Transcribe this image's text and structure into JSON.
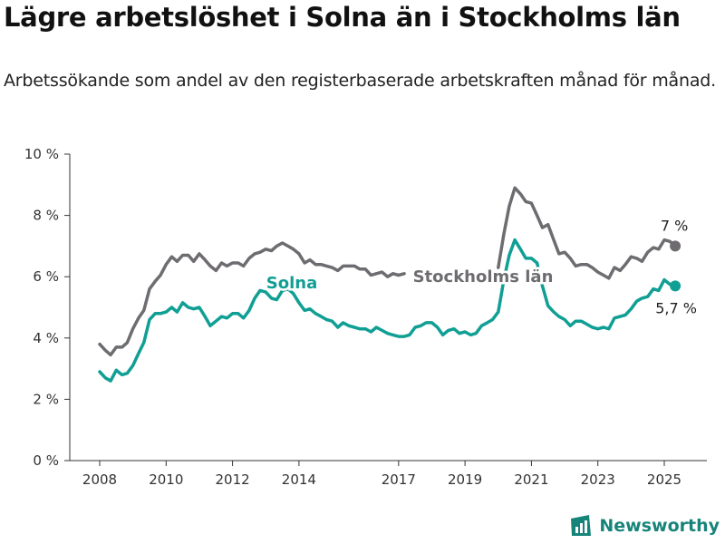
{
  "title": "Lägre arbetslöshet i Solna än i Stockholms län",
  "subtitle": "Arbetssökande som andel av den registerbaserade arbetskraften månad för månad.",
  "brand": {
    "name": "Newsworthy",
    "icon": "newsworthy-logo-icon"
  },
  "colors": {
    "solna": "#109f94",
    "stockholm": "#6e6c70",
    "axis": "#333333",
    "text": "#222222"
  },
  "chart_data": {
    "type": "line",
    "title": "Lägre arbetslöshet i Solna än i Stockholms län",
    "ylabel": "",
    "xlabel": "",
    "ylim": [
      0,
      10
    ],
    "xlim": [
      2007.2,
      2026.2
    ],
    "grid": false,
    "y_ticks": [
      {
        "value": 0,
        "label": "0 %"
      },
      {
        "value": 2,
        "label": "2 %"
      },
      {
        "value": 4,
        "label": "4 %"
      },
      {
        "value": 6,
        "label": "6 %"
      },
      {
        "value": 8,
        "label": "8 %"
      },
      {
        "value": 10,
        "label": "10 %"
      }
    ],
    "x_ticks": [
      "2008",
      "2010",
      "2012",
      "2014",
      "2017",
      "2019",
      "2021",
      "2023",
      "2025"
    ],
    "series": [
      {
        "name": "Stockholms län",
        "color": "#6e6c70",
        "end_label": "7 %",
        "points": [
          [
            2008.0,
            3.8
          ],
          [
            2008.17,
            3.6
          ],
          [
            2008.33,
            3.45
          ],
          [
            2008.5,
            3.7
          ],
          [
            2008.67,
            3.7
          ],
          [
            2008.83,
            3.85
          ],
          [
            2009.0,
            4.3
          ],
          [
            2009.17,
            4.65
          ],
          [
            2009.33,
            4.9
          ],
          [
            2009.5,
            5.6
          ],
          [
            2009.67,
            5.85
          ],
          [
            2009.83,
            6.05
          ],
          [
            2010.0,
            6.4
          ],
          [
            2010.17,
            6.65
          ],
          [
            2010.33,
            6.5
          ],
          [
            2010.5,
            6.7
          ],
          [
            2010.67,
            6.7
          ],
          [
            2010.83,
            6.5
          ],
          [
            2011.0,
            6.75
          ],
          [
            2011.17,
            6.55
          ],
          [
            2011.33,
            6.35
          ],
          [
            2011.5,
            6.2
          ],
          [
            2011.67,
            6.45
          ],
          [
            2011.83,
            6.35
          ],
          [
            2012.0,
            6.45
          ],
          [
            2012.17,
            6.45
          ],
          [
            2012.33,
            6.35
          ],
          [
            2012.5,
            6.6
          ],
          [
            2012.67,
            6.75
          ],
          [
            2012.83,
            6.8
          ],
          [
            2013.0,
            6.9
          ],
          [
            2013.17,
            6.85
          ],
          [
            2013.33,
            7.0
          ],
          [
            2013.5,
            7.1
          ],
          [
            2013.67,
            7.0
          ],
          [
            2013.83,
            6.9
          ],
          [
            2014.0,
            6.75
          ],
          [
            2014.17,
            6.45
          ],
          [
            2014.33,
            6.55
          ],
          [
            2014.5,
            6.4
          ],
          [
            2014.67,
            6.4
          ],
          [
            2014.83,
            6.35
          ],
          [
            2015.0,
            6.3
          ],
          [
            2015.17,
            6.2
          ],
          [
            2015.33,
            6.35
          ],
          [
            2015.5,
            6.35
          ],
          [
            2015.67,
            6.35
          ],
          [
            2015.83,
            6.25
          ],
          [
            2016.0,
            6.25
          ],
          [
            2016.17,
            6.05
          ],
          [
            2016.33,
            6.1
          ],
          [
            2016.5,
            6.15
          ],
          [
            2016.67,
            6.0
          ],
          [
            2016.83,
            6.1
          ],
          [
            2017.0,
            6.05
          ],
          [
            2017.17,
            6.1
          ]
        ],
        "points_after_gap": [
          [
            2019.25,
            5.85
          ],
          [
            2019.35,
            5.9
          ]
        ],
        "points_end": [
          [
            2020.0,
            6.3
          ],
          [
            2020.17,
            7.4
          ],
          [
            2020.33,
            8.3
          ],
          [
            2020.5,
            8.9
          ],
          [
            2020.67,
            8.7
          ],
          [
            2020.83,
            8.45
          ],
          [
            2021.0,
            8.4
          ],
          [
            2021.17,
            8.0
          ],
          [
            2021.33,
            7.6
          ],
          [
            2021.5,
            7.7
          ],
          [
            2021.67,
            7.2
          ],
          [
            2021.83,
            6.75
          ],
          [
            2022.0,
            6.8
          ],
          [
            2022.17,
            6.6
          ],
          [
            2022.33,
            6.35
          ],
          [
            2022.5,
            6.4
          ],
          [
            2022.67,
            6.4
          ],
          [
            2022.83,
            6.3
          ],
          [
            2023.0,
            6.15
          ],
          [
            2023.17,
            6.05
          ],
          [
            2023.33,
            5.95
          ],
          [
            2023.5,
            6.3
          ],
          [
            2023.67,
            6.2
          ],
          [
            2023.83,
            6.4
          ],
          [
            2024.0,
            6.65
          ],
          [
            2024.17,
            6.6
          ],
          [
            2024.33,
            6.5
          ],
          [
            2024.5,
            6.8
          ],
          [
            2024.67,
            6.95
          ],
          [
            2024.83,
            6.9
          ],
          [
            2025.0,
            7.2
          ],
          [
            2025.17,
            7.15
          ],
          [
            2025.33,
            7.0
          ]
        ]
      },
      {
        "name": "Solna",
        "color": "#109f94",
        "end_label": "5,7 %",
        "points": [
          [
            2008.0,
            2.9
          ],
          [
            2008.17,
            2.7
          ],
          [
            2008.33,
            2.6
          ],
          [
            2008.5,
            2.95
          ],
          [
            2008.67,
            2.8
          ],
          [
            2008.83,
            2.85
          ],
          [
            2009.0,
            3.1
          ],
          [
            2009.17,
            3.5
          ],
          [
            2009.33,
            3.85
          ],
          [
            2009.5,
            4.6
          ],
          [
            2009.67,
            4.8
          ],
          [
            2009.83,
            4.8
          ],
          [
            2010.0,
            4.85
          ],
          [
            2010.17,
            5.0
          ],
          [
            2010.33,
            4.85
          ],
          [
            2010.5,
            5.15
          ],
          [
            2010.67,
            5.0
          ],
          [
            2010.83,
            4.95
          ],
          [
            2011.0,
            5.0
          ],
          [
            2011.17,
            4.7
          ],
          [
            2011.33,
            4.4
          ],
          [
            2011.5,
            4.55
          ],
          [
            2011.67,
            4.7
          ],
          [
            2011.83,
            4.65
          ],
          [
            2012.0,
            4.8
          ],
          [
            2012.17,
            4.8
          ],
          [
            2012.33,
            4.65
          ],
          [
            2012.5,
            4.9
          ],
          [
            2012.67,
            5.3
          ],
          [
            2012.83,
            5.55
          ],
          [
            2013.0,
            5.5
          ],
          [
            2013.17,
            5.3
          ],
          [
            2013.33,
            5.25
          ],
          [
            2013.5,
            5.55
          ],
          [
            2013.67,
            5.6
          ],
          [
            2013.83,
            5.45
          ],
          [
            2014.0,
            5.15
          ],
          [
            2014.17,
            4.9
          ],
          [
            2014.33,
            4.95
          ],
          [
            2014.5,
            4.8
          ],
          [
            2014.67,
            4.7
          ],
          [
            2014.83,
            4.6
          ],
          [
            2015.0,
            4.55
          ],
          [
            2015.17,
            4.35
          ],
          [
            2015.33,
            4.5
          ],
          [
            2015.5,
            4.4
          ],
          [
            2015.67,
            4.35
          ],
          [
            2015.83,
            4.3
          ],
          [
            2016.0,
            4.3
          ],
          [
            2016.17,
            4.2
          ],
          [
            2016.33,
            4.35
          ],
          [
            2016.5,
            4.25
          ],
          [
            2016.67,
            4.15
          ],
          [
            2016.83,
            4.1
          ],
          [
            2017.0,
            4.05
          ],
          [
            2017.17,
            4.05
          ],
          [
            2017.33,
            4.1
          ],
          [
            2017.5,
            4.35
          ],
          [
            2017.67,
            4.4
          ],
          [
            2017.83,
            4.5
          ],
          [
            2018.0,
            4.5
          ],
          [
            2018.17,
            4.35
          ],
          [
            2018.33,
            4.1
          ],
          [
            2018.5,
            4.25
          ],
          [
            2018.67,
            4.3
          ],
          [
            2018.83,
            4.15
          ],
          [
            2019.0,
            4.2
          ],
          [
            2019.17,
            4.1
          ],
          [
            2019.33,
            4.15
          ],
          [
            2019.5,
            4.4
          ],
          [
            2019.67,
            4.5
          ],
          [
            2019.83,
            4.6
          ],
          [
            2020.0,
            4.85
          ],
          [
            2020.17,
            5.9
          ],
          [
            2020.33,
            6.7
          ],
          [
            2020.5,
            7.2
          ],
          [
            2020.67,
            6.9
          ],
          [
            2020.83,
            6.6
          ],
          [
            2021.0,
            6.6
          ],
          [
            2021.17,
            6.45
          ],
          [
            2021.33,
            5.7
          ],
          [
            2021.5,
            5.05
          ],
          [
            2021.67,
            4.85
          ],
          [
            2021.83,
            4.7
          ],
          [
            2022.0,
            4.6
          ],
          [
            2022.17,
            4.4
          ],
          [
            2022.33,
            4.55
          ],
          [
            2022.5,
            4.55
          ],
          [
            2022.67,
            4.45
          ],
          [
            2022.83,
            4.35
          ],
          [
            2023.0,
            4.3
          ],
          [
            2023.17,
            4.35
          ],
          [
            2023.33,
            4.3
          ],
          [
            2023.5,
            4.65
          ],
          [
            2023.67,
            4.7
          ],
          [
            2023.83,
            4.75
          ],
          [
            2024.0,
            4.95
          ],
          [
            2024.17,
            5.2
          ],
          [
            2024.33,
            5.3
          ],
          [
            2024.5,
            5.35
          ],
          [
            2024.67,
            5.6
          ],
          [
            2024.83,
            5.55
          ],
          [
            2025.0,
            5.9
          ],
          [
            2025.17,
            5.75
          ],
          [
            2025.33,
            5.7
          ]
        ]
      }
    ]
  }
}
